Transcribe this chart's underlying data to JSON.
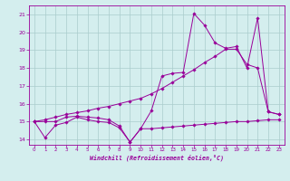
{
  "xlabel": "Windchill (Refroidissement éolien,°C)",
  "background_color": "#d4eeee",
  "line_color": "#990099",
  "grid_color": "#aacccc",
  "xlim": [
    -0.5,
    23.5
  ],
  "ylim": [
    13.7,
    21.5
  ],
  "yticks": [
    14,
    15,
    16,
    17,
    18,
    19,
    20,
    21
  ],
  "xticks": [
    0,
    1,
    2,
    3,
    4,
    5,
    6,
    7,
    8,
    9,
    10,
    11,
    12,
    13,
    14,
    15,
    16,
    17,
    18,
    19,
    20,
    21,
    22,
    23
  ],
  "series1_x": [
    0,
    1,
    2,
    3,
    4,
    5,
    6,
    7,
    8,
    9,
    10,
    11,
    12,
    13,
    14,
    15,
    16,
    17,
    18,
    19,
    20,
    21,
    22,
    23
  ],
  "series1_y": [
    15.0,
    14.1,
    14.8,
    14.95,
    15.25,
    15.1,
    15.0,
    14.95,
    14.65,
    13.85,
    14.6,
    14.6,
    14.65,
    14.7,
    14.75,
    14.8,
    14.85,
    14.9,
    14.95,
    15.0,
    15.0,
    15.05,
    15.1,
    15.1
  ],
  "series2_x": [
    0,
    1,
    2,
    3,
    4,
    5,
    6,
    7,
    8,
    9,
    10,
    11,
    12,
    13,
    14,
    15,
    16,
    17,
    18,
    19,
    20,
    21,
    22,
    23
  ],
  "series2_y": [
    15.0,
    15.0,
    15.0,
    15.25,
    15.3,
    15.25,
    15.2,
    15.1,
    14.75,
    13.85,
    14.6,
    15.6,
    17.55,
    17.7,
    17.75,
    21.05,
    20.4,
    19.4,
    19.1,
    19.2,
    18.0,
    20.8,
    15.55,
    15.4
  ],
  "series3_x": [
    0,
    1,
    2,
    3,
    4,
    5,
    6,
    7,
    8,
    9,
    10,
    11,
    12,
    13,
    14,
    15,
    16,
    17,
    18,
    19,
    20,
    21,
    22,
    23
  ],
  "series3_y": [
    15.0,
    15.1,
    15.25,
    15.4,
    15.5,
    15.6,
    15.75,
    15.85,
    16.0,
    16.15,
    16.3,
    16.55,
    16.85,
    17.2,
    17.55,
    17.9,
    18.3,
    18.65,
    19.05,
    19.05,
    18.2,
    18.0,
    15.55,
    15.4
  ]
}
